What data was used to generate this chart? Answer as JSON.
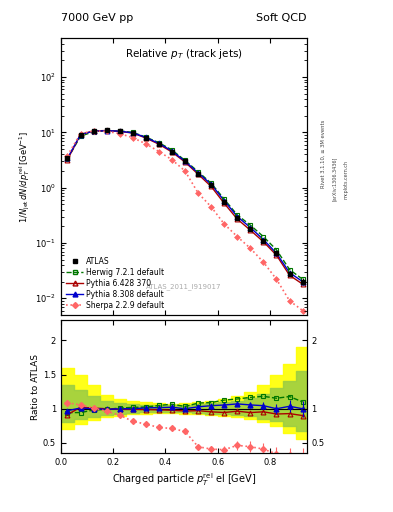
{
  "title_left": "7000 GeV pp",
  "title_right": "Soft QCD",
  "plot_title": "Relative p_{T} (track jets)",
  "ylabel_main": "1/N_{jet} dN/dp^{rel}_{T} el [GeV^{-1}]",
  "ylabel_ratio": "Ratio to ATLAS",
  "xlabel": "Charged particle p^{rel}_{T} el [GeV]",
  "rivet_label": "Rivet 3.1.10, ≥ 3M events",
  "arxiv_label": "[arXiv:1306.3436]",
  "mcplots_label": "mcplots.cern.ch",
  "atlas_label": "ATLAS_2011_I919017",
  "xlim": [
    0.0,
    0.94
  ],
  "ylim_main": [
    0.005,
    500
  ],
  "ylim_ratio": [
    0.35,
    2.3
  ],
  "atlas_x": [
    0.025,
    0.075,
    0.125,
    0.175,
    0.225,
    0.275,
    0.325,
    0.375,
    0.425,
    0.475,
    0.525,
    0.575,
    0.625,
    0.675,
    0.725,
    0.775,
    0.825,
    0.875,
    0.925
  ],
  "atlas_y": [
    3.5,
    9.0,
    10.5,
    10.8,
    10.5,
    9.8,
    8.0,
    6.2,
    4.5,
    3.0,
    1.8,
    1.1,
    0.55,
    0.28,
    0.18,
    0.11,
    0.065,
    0.028,
    0.02
  ],
  "atlas_yerr": [
    0.3,
    0.4,
    0.4,
    0.4,
    0.4,
    0.4,
    0.3,
    0.3,
    0.2,
    0.15,
    0.1,
    0.06,
    0.03,
    0.02,
    0.015,
    0.01,
    0.006,
    0.003,
    0.003
  ],
  "herwig_x": [
    0.025,
    0.075,
    0.125,
    0.175,
    0.225,
    0.275,
    0.325,
    0.375,
    0.425,
    0.475,
    0.525,
    0.575,
    0.625,
    0.675,
    0.725,
    0.775,
    0.825,
    0.875,
    0.925
  ],
  "herwig_y": [
    3.3,
    8.5,
    10.3,
    10.7,
    10.6,
    10.0,
    8.2,
    6.5,
    4.8,
    3.1,
    1.95,
    1.2,
    0.62,
    0.32,
    0.21,
    0.13,
    0.075,
    0.033,
    0.022
  ],
  "pythia6_x": [
    0.025,
    0.075,
    0.125,
    0.175,
    0.225,
    0.275,
    0.325,
    0.375,
    0.425,
    0.475,
    0.525,
    0.575,
    0.625,
    0.675,
    0.725,
    0.775,
    0.825,
    0.875,
    0.925
  ],
  "pythia6_y": [
    3.2,
    9.2,
    10.6,
    10.8,
    10.4,
    9.7,
    7.9,
    6.1,
    4.4,
    2.9,
    1.75,
    1.05,
    0.52,
    0.27,
    0.17,
    0.105,
    0.06,
    0.026,
    0.018
  ],
  "pythia8_x": [
    0.025,
    0.075,
    0.125,
    0.175,
    0.225,
    0.275,
    0.325,
    0.375,
    0.425,
    0.475,
    0.525,
    0.575,
    0.625,
    0.675,
    0.725,
    0.775,
    0.825,
    0.875,
    0.925
  ],
  "pythia8_y": [
    3.4,
    9.1,
    10.5,
    10.7,
    10.5,
    9.8,
    8.1,
    6.3,
    4.6,
    3.0,
    1.85,
    1.15,
    0.58,
    0.3,
    0.19,
    0.115,
    0.065,
    0.029,
    0.02
  ],
  "sherpa_x": [
    0.025,
    0.075,
    0.125,
    0.175,
    0.225,
    0.275,
    0.325,
    0.375,
    0.425,
    0.475,
    0.525,
    0.575,
    0.625,
    0.675,
    0.725,
    0.775,
    0.825,
    0.875,
    0.925
  ],
  "sherpa_y": [
    3.8,
    9.5,
    10.6,
    10.4,
    9.5,
    8.0,
    6.2,
    4.5,
    3.2,
    2.0,
    0.8,
    0.45,
    0.22,
    0.13,
    0.08,
    0.045,
    0.022,
    0.009,
    0.006
  ],
  "herwig_ratio": [
    0.943,
    0.944,
    0.981,
    0.991,
    1.01,
    1.02,
    1.025,
    1.048,
    1.067,
    1.033,
    1.083,
    1.091,
    1.127,
    1.143,
    1.167,
    1.182,
    1.154,
    1.179,
    1.1
  ],
  "pythia6_ratio": [
    0.914,
    1.022,
    1.01,
    1.0,
    0.99,
    0.99,
    0.988,
    0.984,
    0.978,
    0.967,
    0.972,
    0.955,
    0.945,
    0.964,
    0.944,
    0.955,
    0.923,
    0.929,
    0.9
  ],
  "pythia8_ratio": [
    0.971,
    1.011,
    1.0,
    0.991,
    1.0,
    1.0,
    1.013,
    1.016,
    1.022,
    1.0,
    1.028,
    1.045,
    1.055,
    1.071,
    1.056,
    1.045,
    1.0,
    1.036,
    1.0
  ],
  "sherpa_ratio": [
    1.086,
    1.056,
    1.01,
    0.963,
    0.905,
    0.816,
    0.775,
    0.726,
    0.711,
    0.667,
    0.444,
    0.409,
    0.4,
    0.464,
    0.444,
    0.409,
    0.338,
    0.321,
    0.3
  ],
  "band_x": [
    0.0,
    0.05,
    0.1,
    0.15,
    0.2,
    0.25,
    0.3,
    0.35,
    0.4,
    0.45,
    0.5,
    0.55,
    0.6,
    0.65,
    0.7,
    0.75,
    0.8,
    0.85,
    0.9,
    0.95
  ],
  "yellow_band_low": [
    0.7,
    0.78,
    0.83,
    0.88,
    0.9,
    0.92,
    0.93,
    0.94,
    0.94,
    0.93,
    0.92,
    0.91,
    0.9,
    0.88,
    0.85,
    0.8,
    0.75,
    0.65,
    0.55,
    0.5
  ],
  "yellow_band_high": [
    1.6,
    1.5,
    1.35,
    1.2,
    1.15,
    1.12,
    1.1,
    1.08,
    1.07,
    1.08,
    1.1,
    1.12,
    1.15,
    1.18,
    1.25,
    1.35,
    1.5,
    1.65,
    1.9,
    2.1
  ],
  "green_band_low": [
    0.8,
    0.85,
    0.88,
    0.91,
    0.93,
    0.94,
    0.95,
    0.95,
    0.95,
    0.95,
    0.94,
    0.93,
    0.92,
    0.91,
    0.89,
    0.85,
    0.82,
    0.75,
    0.68,
    0.65
  ],
  "green_band_high": [
    1.35,
    1.28,
    1.18,
    1.12,
    1.09,
    1.07,
    1.06,
    1.06,
    1.06,
    1.06,
    1.07,
    1.08,
    1.1,
    1.12,
    1.16,
    1.22,
    1.3,
    1.4,
    1.55,
    1.7
  ],
  "color_atlas": "#000000",
  "color_herwig": "#007700",
  "color_pythia6": "#aa0000",
  "color_pythia8": "#0000cc",
  "color_sherpa": "#ff6666",
  "color_yellow": "#ffff00",
  "color_green": "#99cc44",
  "bg_color": "#ffffff"
}
